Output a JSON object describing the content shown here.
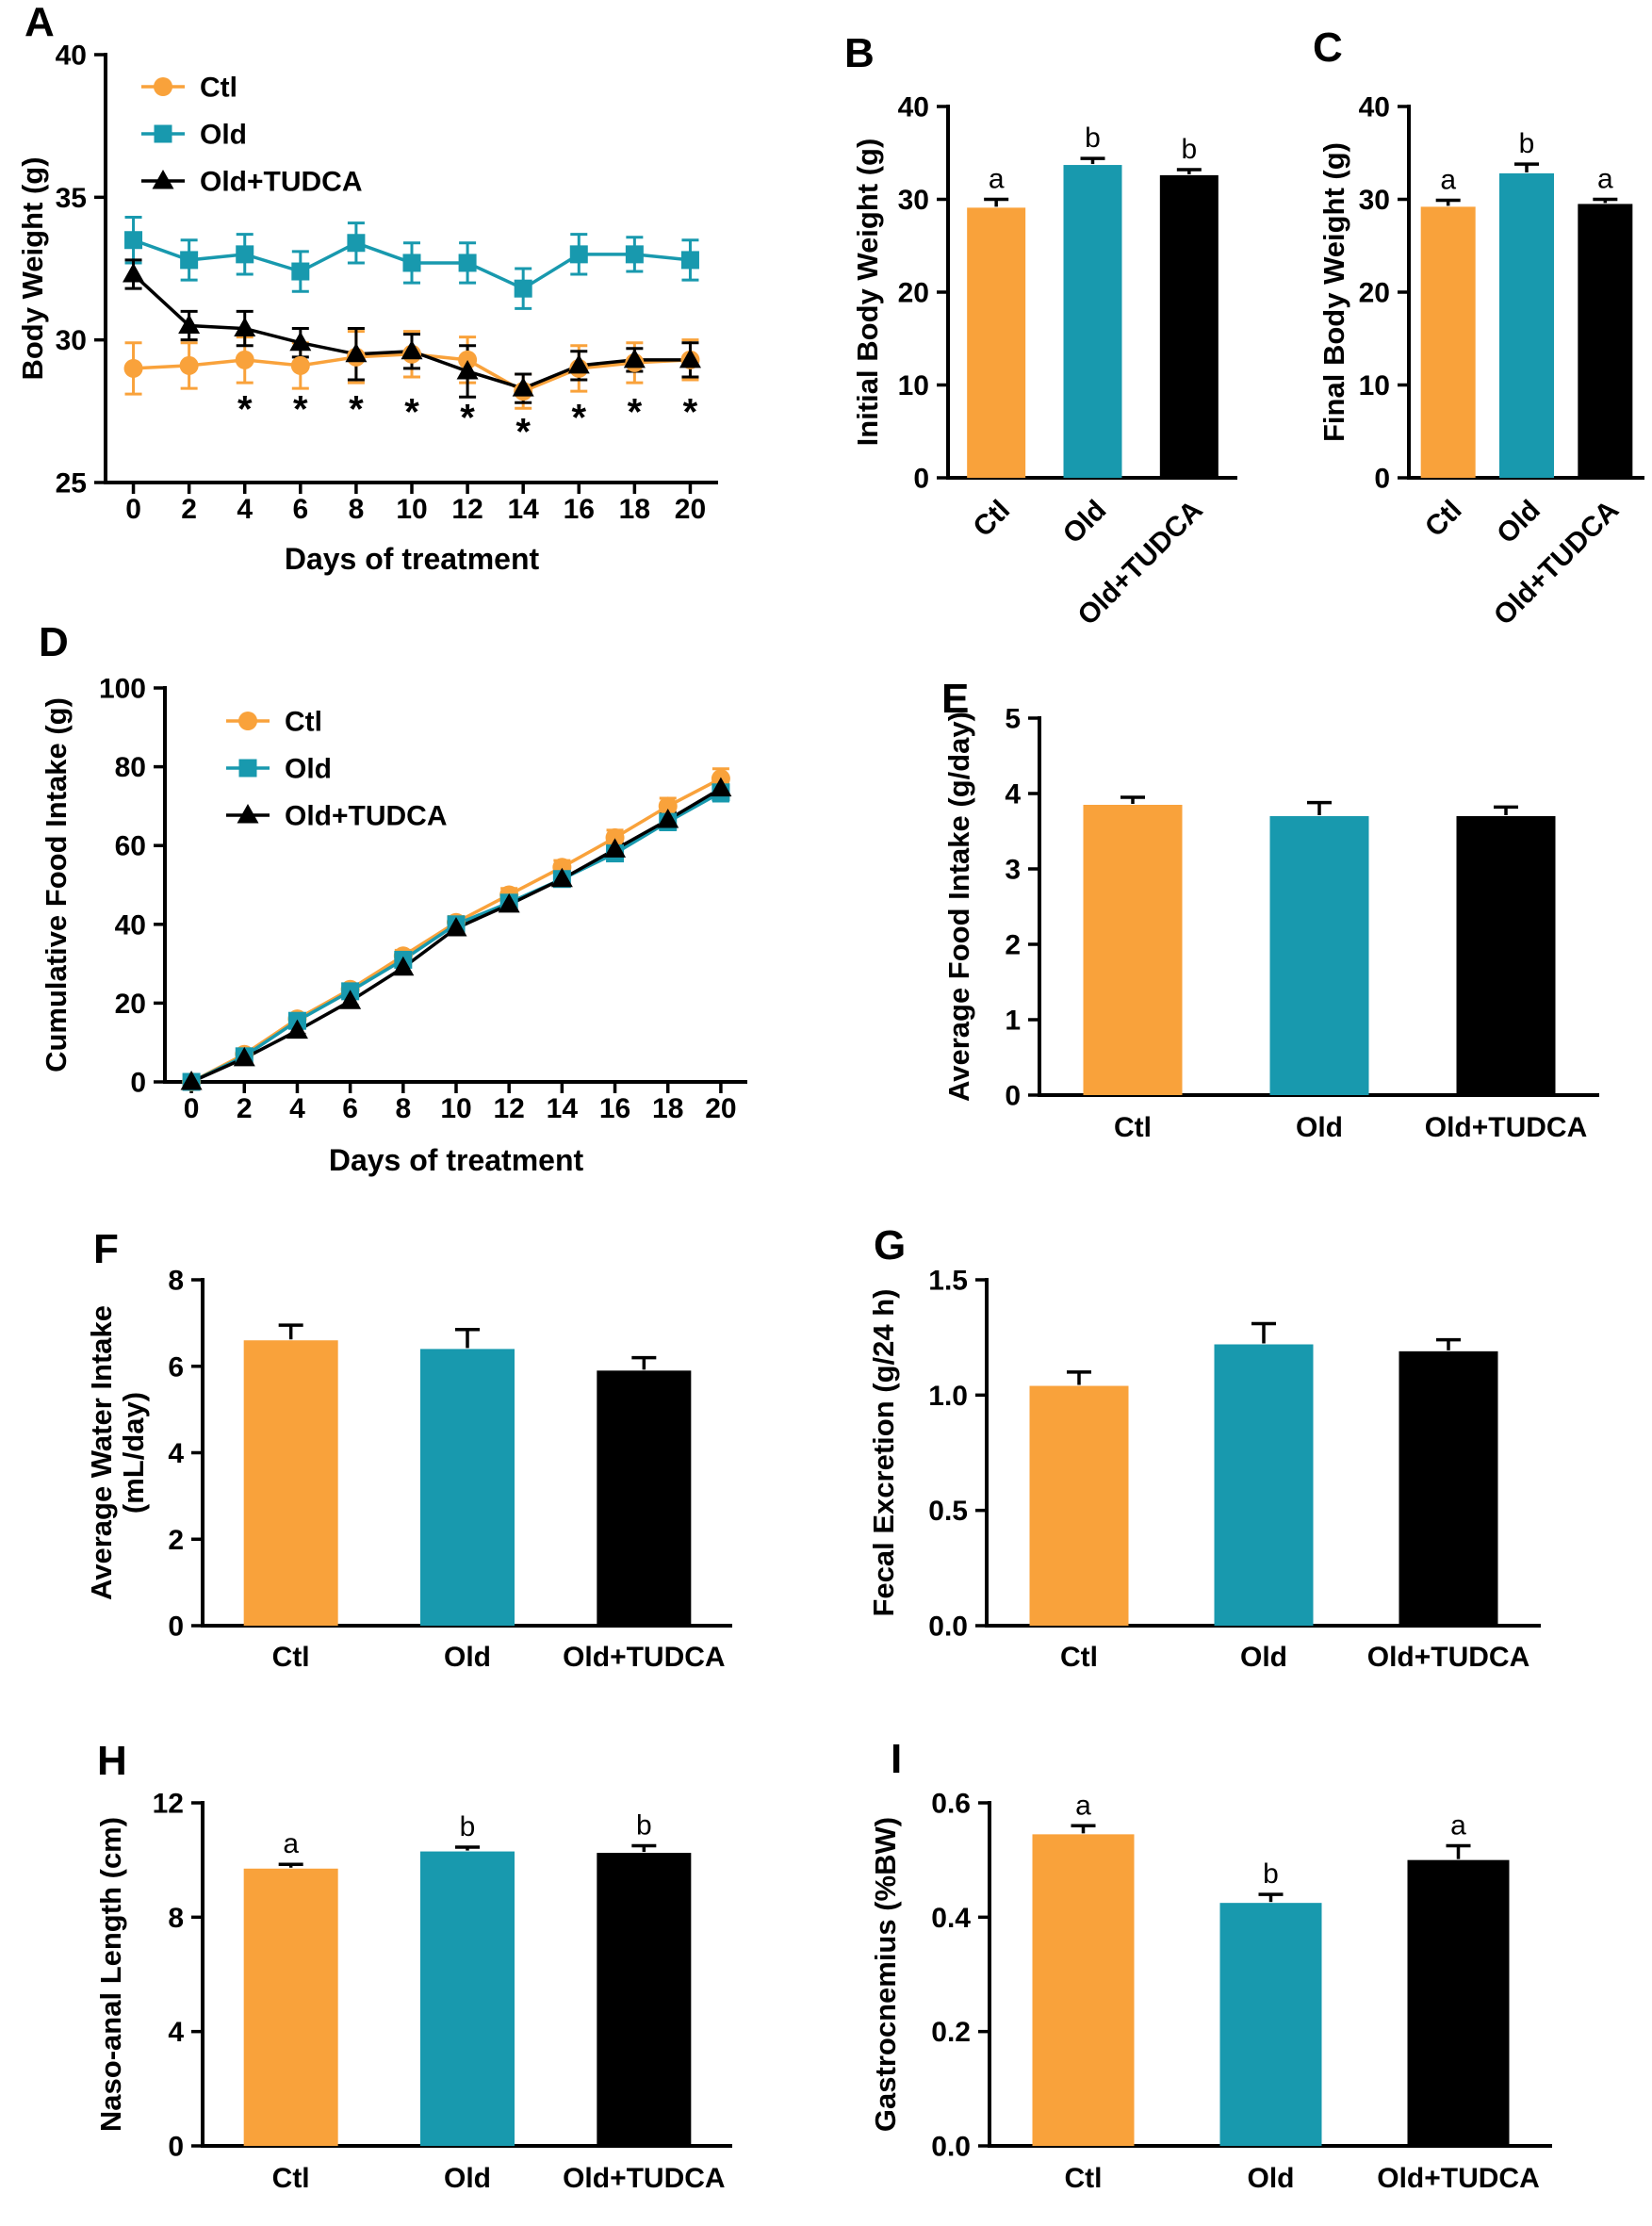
{
  "figure": {
    "background": "#ffffff"
  },
  "colors": {
    "ctl": "#F9A23B",
    "old": "#1899AE",
    "black": "#000000"
  },
  "chart_data": [
    {
      "panel_label": "A",
      "type": "line",
      "xlabel": "Days of treatment",
      "ylabel": [
        "Body Weight (g)"
      ],
      "xlim": [
        -1,
        21
      ],
      "ylim": [
        25,
        40
      ],
      "x": [
        0,
        2,
        4,
        6,
        8,
        10,
        12,
        14,
        16,
        18,
        20
      ],
      "yticks": [
        25,
        30,
        35,
        40
      ],
      "tick_decimals": 0,
      "legend_position": "upper-left",
      "series": [
        {
          "name": "Ctl",
          "marker": "circle",
          "color_key": "ctl",
          "values": [
            29.0,
            29.1,
            29.3,
            29.1,
            29.4,
            29.5,
            29.3,
            28.2,
            29.0,
            29.2,
            29.3
          ],
          "errors": [
            0.9,
            0.8,
            0.8,
            0.8,
            0.9,
            0.8,
            0.8,
            0.6,
            0.8,
            0.7,
            0.7
          ]
        },
        {
          "name": "Old",
          "marker": "square",
          "color_key": "old",
          "values": [
            33.5,
            32.8,
            33.0,
            32.4,
            33.4,
            32.7,
            32.7,
            31.8,
            33.0,
            33.0,
            32.8
          ],
          "errors": [
            0.8,
            0.7,
            0.7,
            0.7,
            0.7,
            0.7,
            0.7,
            0.7,
            0.7,
            0.6,
            0.7
          ]
        },
        {
          "name": "Old+TUDCA",
          "marker": "triangle",
          "color_key": "black",
          "values": [
            32.3,
            30.5,
            30.4,
            29.9,
            29.5,
            29.6,
            28.9,
            28.3,
            29.1,
            29.3,
            29.3
          ],
          "errors": [
            0.5,
            0.5,
            0.6,
            0.5,
            0.9,
            0.6,
            0.9,
            0.5,
            0.5,
            0.4,
            0.6
          ]
        }
      ],
      "annotations": [
        {
          "text": "*",
          "x": 4,
          "y": 27.8
        },
        {
          "text": "*",
          "x": 6,
          "y": 27.8
        },
        {
          "text": "*",
          "x": 8,
          "y": 27.8
        },
        {
          "text": "*",
          "x": 10,
          "y": 27.7
        },
        {
          "text": "*",
          "x": 12,
          "y": 27.5
        },
        {
          "text": "*",
          "x": 14,
          "y": 27.0
        },
        {
          "text": "*",
          "x": 16,
          "y": 27.5
        },
        {
          "text": "*",
          "x": 18,
          "y": 27.7
        },
        {
          "text": "*",
          "x": 20,
          "y": 27.7
        }
      ]
    },
    {
      "panel_label": "B",
      "type": "bar",
      "ylabel": [
        "Initial Body Weight (g)"
      ],
      "categories": [
        "Ctl",
        "Old",
        "Old+TUDCA"
      ],
      "color_keys": [
        "ctl",
        "old",
        "black"
      ],
      "values": [
        29.1,
        33.7,
        32.6
      ],
      "errors": [
        0.9,
        0.7,
        0.6
      ],
      "letters": [
        "a",
        "b",
        "b"
      ],
      "ylim": [
        0,
        40
      ],
      "yticks": [
        0,
        10,
        20,
        30,
        40
      ],
      "tick_decimals": 0,
      "rotate_xlabels": true
    },
    {
      "panel_label": "C",
      "type": "bar",
      "ylabel": [
        "Final Body Weight (g)"
      ],
      "categories": [
        "Ctl",
        "Old",
        "Old+TUDCA"
      ],
      "color_keys": [
        "ctl",
        "old",
        "black"
      ],
      "values": [
        29.2,
        32.8,
        29.5
      ],
      "errors": [
        0.7,
        1.0,
        0.5
      ],
      "letters": [
        "a",
        "b",
        "a"
      ],
      "ylim": [
        0,
        40
      ],
      "yticks": [
        0,
        10,
        20,
        30,
        40
      ],
      "tick_decimals": 0,
      "rotate_xlabels": true
    },
    {
      "panel_label": "D",
      "type": "line",
      "xlabel": "Days of treatment",
      "ylabel": [
        "Cumulative Food Intake (g)"
      ],
      "xlim": [
        -1,
        21
      ],
      "ylim": [
        0,
        100
      ],
      "x": [
        0,
        2,
        4,
        6,
        8,
        10,
        12,
        14,
        16,
        18,
        20
      ],
      "yticks": [
        0,
        20,
        40,
        60,
        80,
        100
      ],
      "tick_decimals": 0,
      "legend_position": "upper-left",
      "series": [
        {
          "name": "Ctl",
          "marker": "circle",
          "color_key": "ctl",
          "values": [
            0,
            7,
            16,
            23.5,
            32,
            40.5,
            47.5,
            54.5,
            62,
            70,
            77
          ],
          "errors": [
            0.3,
            0.8,
            1.0,
            1.2,
            1.4,
            1.5,
            1.6,
            1.7,
            1.9,
            2.0,
            2.5
          ]
        },
        {
          "name": "Old",
          "marker": "square",
          "color_key": "old",
          "values": [
            0,
            6.5,
            15.5,
            23,
            31,
            40,
            45.5,
            51.5,
            58,
            66,
            73.5
          ],
          "errors": [
            0.3,
            0.8,
            1.0,
            1.2,
            1.4,
            1.5,
            1.5,
            1.6,
            1.8,
            2.0,
            2.2
          ]
        },
        {
          "name": "Old+TUDCA",
          "marker": "triangle",
          "color_key": "black",
          "values": [
            0,
            6,
            13,
            20.5,
            29,
            39,
            45,
            51.5,
            59,
            66.5,
            74.5
          ],
          "errors": [
            0.3,
            0.7,
            0.9,
            1.1,
            1.3,
            1.4,
            1.5,
            1.6,
            1.8,
            1.9,
            2.2
          ]
        }
      ],
      "annotations": []
    },
    {
      "panel_label": "E",
      "type": "bar",
      "ylabel": [
        "Average Food Intake (g/day)"
      ],
      "categories": [
        "Ctl",
        "Old",
        "Old+TUDCA"
      ],
      "color_keys": [
        "ctl",
        "old",
        "black"
      ],
      "values": [
        3.85,
        3.7,
        3.7
      ],
      "errors": [
        0.1,
        0.18,
        0.12
      ],
      "letters": null,
      "ylim": [
        0,
        5
      ],
      "yticks": [
        0,
        1,
        2,
        3,
        4,
        5
      ],
      "tick_decimals": 0,
      "rotate_xlabels": false
    },
    {
      "panel_label": "F",
      "type": "bar",
      "ylabel": [
        "Average Water Intake",
        "(mL/day)"
      ],
      "categories": [
        "Ctl",
        "Old",
        "Old+TUDCA"
      ],
      "color_keys": [
        "ctl",
        "old",
        "black"
      ],
      "values": [
        6.6,
        6.4,
        5.9
      ],
      "errors": [
        0.35,
        0.45,
        0.3
      ],
      "letters": null,
      "ylim": [
        0,
        8
      ],
      "yticks": [
        0,
        2,
        4,
        6,
        8
      ],
      "tick_decimals": 0,
      "rotate_xlabels": false
    },
    {
      "panel_label": "G",
      "type": "bar",
      "ylabel": [
        "Fecal Excretion (g/24 h)"
      ],
      "categories": [
        "Ctl",
        "Old",
        "Old+TUDCA"
      ],
      "color_keys": [
        "ctl",
        "old",
        "black"
      ],
      "values": [
        1.04,
        1.22,
        1.19
      ],
      "errors": [
        0.06,
        0.09,
        0.05
      ],
      "letters": null,
      "ylim": [
        0,
        1.5
      ],
      "yticks": [
        0,
        0.5,
        1.0,
        1.5
      ],
      "tick_decimals": 1,
      "rotate_xlabels": false
    },
    {
      "panel_label": "H",
      "type": "bar",
      "ylabel": [
        "Naso-anal Length (cm)"
      ],
      "categories": [
        "Ctl",
        "Old",
        "Old+TUDCA"
      ],
      "color_keys": [
        "ctl",
        "old",
        "black"
      ],
      "values": [
        9.7,
        10.3,
        10.25
      ],
      "errors": [
        0.15,
        0.15,
        0.25
      ],
      "letters": [
        "a",
        "b",
        "b"
      ],
      "ylim": [
        0,
        12
      ],
      "yticks": [
        0,
        4,
        8,
        12
      ],
      "tick_decimals": 0,
      "rotate_xlabels": false
    },
    {
      "panel_label": "I",
      "type": "bar",
      "ylabel": [
        "Gastrocnemius (%BW)"
      ],
      "categories": [
        "Ctl",
        "Old",
        "Old+TUDCA"
      ],
      "color_keys": [
        "ctl",
        "old",
        "black"
      ],
      "values": [
        0.545,
        0.425,
        0.5
      ],
      "errors": [
        0.015,
        0.015,
        0.025
      ],
      "letters": [
        "a",
        "b",
        "a"
      ],
      "ylim": [
        0,
        0.6
      ],
      "yticks": [
        0,
        0.2,
        0.4,
        0.6
      ],
      "tick_decimals": 1,
      "rotate_xlabels": false
    }
  ]
}
